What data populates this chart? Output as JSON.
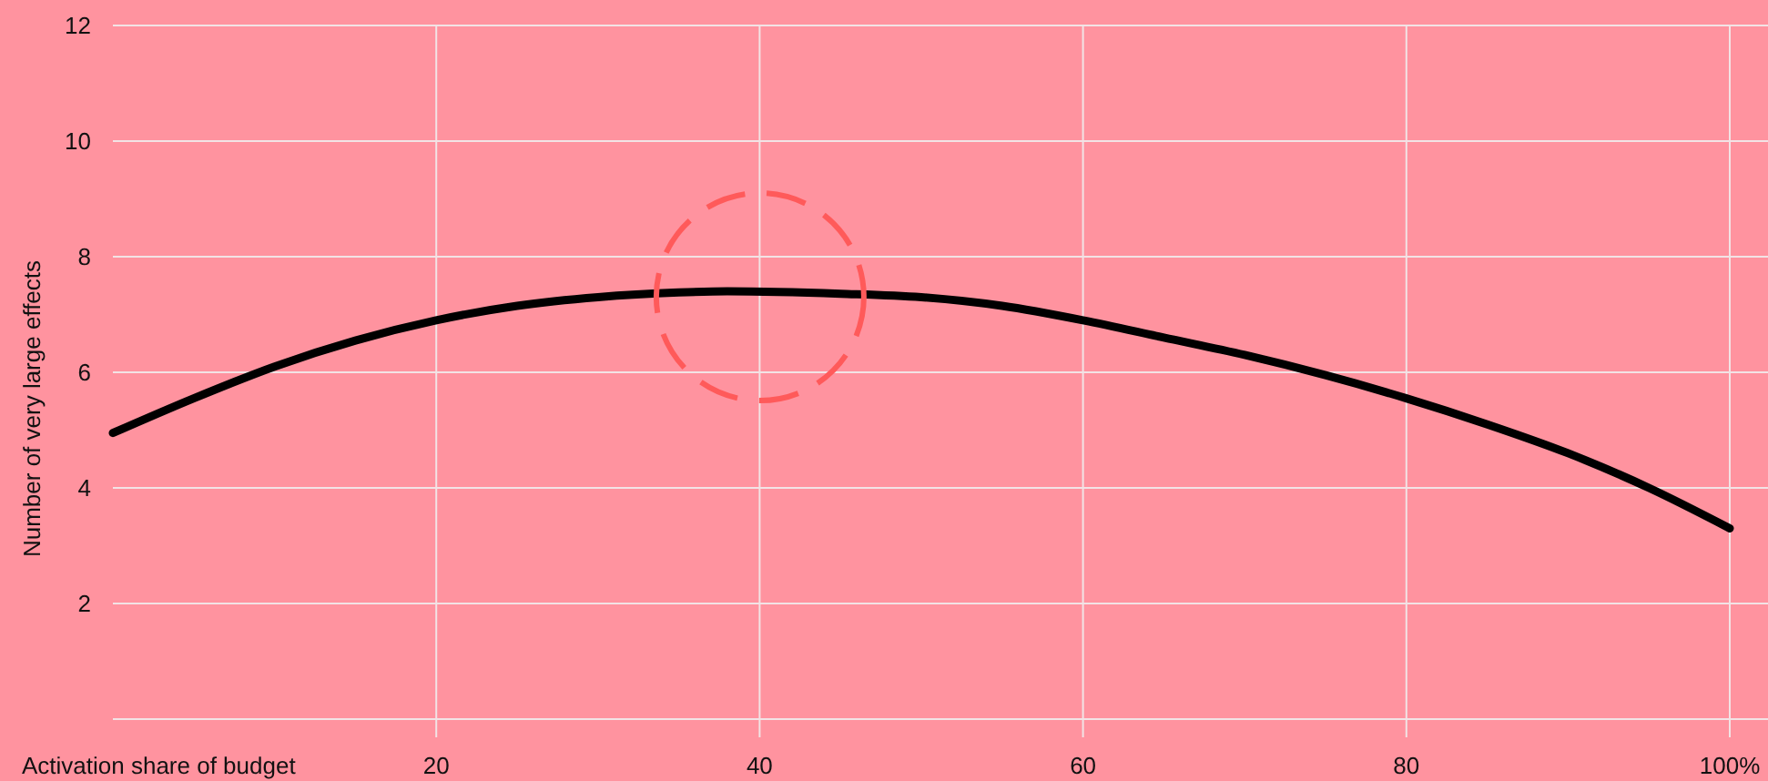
{
  "chart_data": {
    "type": "line",
    "xlabel": "Activation share of budget",
    "ylabel": "Number of very large effects",
    "x": [
      0,
      5,
      10,
      15,
      20,
      25,
      30,
      35,
      38,
      45,
      50,
      55,
      60,
      65,
      70,
      75,
      80,
      85,
      90,
      95,
      100
    ],
    "series": [
      {
        "color": "#000000",
        "values": [
          4.95,
          5.55,
          6.1,
          6.55,
          6.9,
          7.15,
          7.3,
          7.38,
          7.4,
          7.36,
          7.3,
          7.15,
          6.9,
          6.6,
          6.3,
          5.95,
          5.55,
          5.1,
          4.6,
          4.0,
          3.3
        ]
      }
    ],
    "xlim": [
      0,
      100
    ],
    "ylim": [
      0,
      12
    ],
    "xticks": [
      20,
      40,
      60,
      80,
      {
        "value": 100,
        "label": "100%"
      }
    ],
    "yticks": [
      2,
      4,
      6,
      8,
      10,
      12
    ],
    "grid": true,
    "marker": "none",
    "line_style": "solid"
  }
}
